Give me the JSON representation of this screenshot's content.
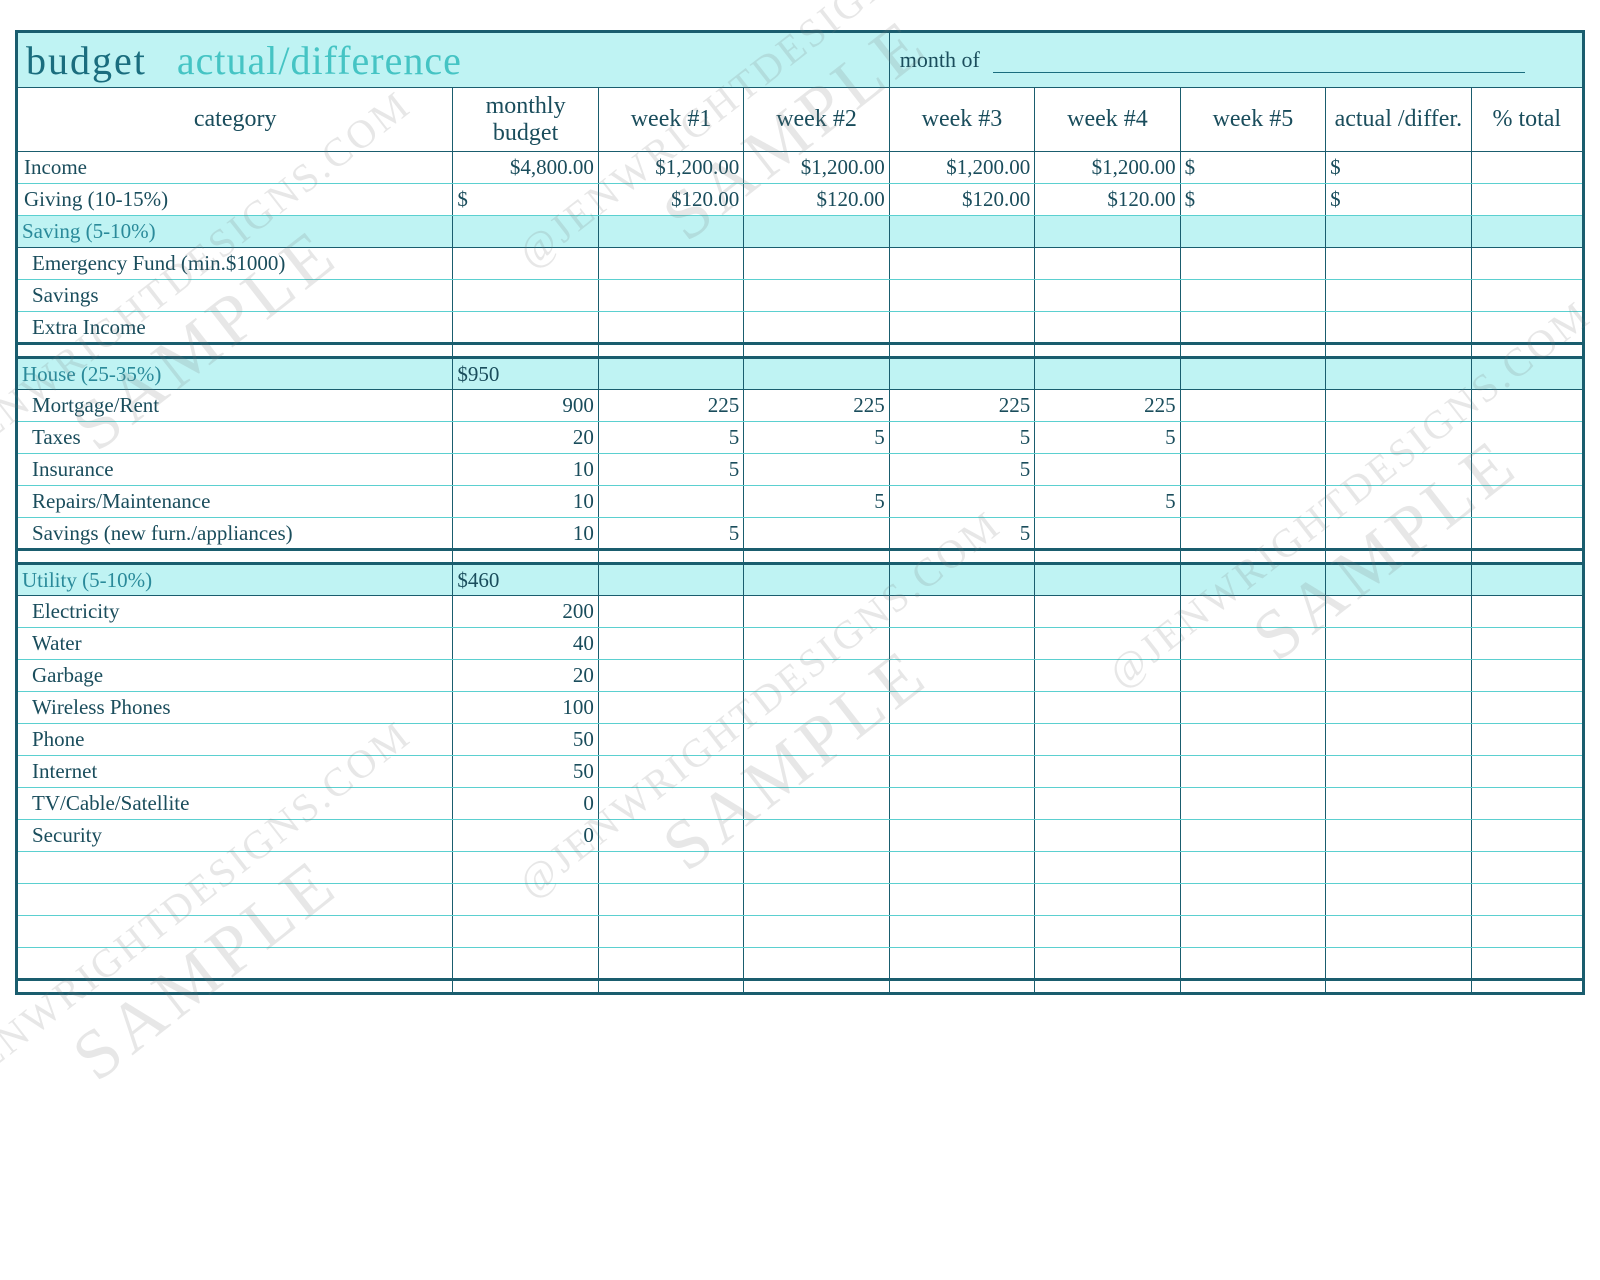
{
  "colors": {
    "border": "#1a5d6e",
    "header_bg": "#bff3f3",
    "inner_line": "#5bd0d0",
    "text": "#1a4d5c",
    "title_dark": "#1a6d7e",
    "title_light": "#45c4c4",
    "section_text": "#2a8a9a",
    "watermark": "rgba(120,120,120,0.18)"
  },
  "title": {
    "word1": "budget",
    "word2": "actual/difference",
    "month_label": "month of"
  },
  "headers": {
    "category": "category",
    "budget": "monthly budget",
    "week1": "week #1",
    "week2": "week #2",
    "week3": "week #3",
    "week4": "week #4",
    "week5": "week #5",
    "actual": "actual /differ.",
    "pct": "% total"
  },
  "top_rows": [
    {
      "label": "Income",
      "budget": "$4,800.00",
      "w1": "$1,200.00",
      "w2": "$1,200.00",
      "w3": "$1,200.00",
      "w4": "$1,200.00",
      "w5": "$",
      "ad": "$",
      "pct": ""
    },
    {
      "label": "Giving (10-15%)",
      "budget": "$",
      "w1": "$120.00",
      "w2": "$120.00",
      "w3": "$120.00",
      "w4": "$120.00",
      "w5": "$",
      "ad": "$",
      "pct": ""
    }
  ],
  "sections": [
    {
      "title": "Saving (5-10%)",
      "budget": "",
      "items": [
        {
          "label": "Emergency Fund (min.$1000)",
          "budget": "",
          "w1": "",
          "w2": "",
          "w3": "",
          "w4": "",
          "w5": "",
          "ad": "",
          "pct": ""
        },
        {
          "label": "Savings",
          "budget": "",
          "w1": "",
          "w2": "",
          "w3": "",
          "w4": "",
          "w5": "",
          "ad": "",
          "pct": ""
        },
        {
          "label": "Extra Income",
          "budget": "",
          "w1": "",
          "w2": "",
          "w3": "",
          "w4": "",
          "w5": "",
          "ad": "",
          "pct": ""
        }
      ]
    },
    {
      "title": "House (25-35%)",
      "budget": "$950",
      "items": [
        {
          "label": "Mortgage/Rent",
          "budget": "900",
          "w1": "225",
          "w2": "225",
          "w3": "225",
          "w4": "225",
          "w5": "",
          "ad": "",
          "pct": ""
        },
        {
          "label": "Taxes",
          "budget": "20",
          "w1": "5",
          "w2": "5",
          "w3": "5",
          "w4": "5",
          "w5": "",
          "ad": "",
          "pct": ""
        },
        {
          "label": "Insurance",
          "budget": "10",
          "w1": "5",
          "w2": "",
          "w3": "5",
          "w4": "",
          "w5": "",
          "ad": "",
          "pct": ""
        },
        {
          "label": "Repairs/Maintenance",
          "budget": "10",
          "w1": "",
          "w2": "5",
          "w3": "",
          "w4": "5",
          "w5": "",
          "ad": "",
          "pct": ""
        },
        {
          "label": "Savings (new furn./appliances)",
          "budget": "10",
          "w1": "5",
          "w2": "",
          "w3": "5",
          "w4": "",
          "w5": "",
          "ad": "",
          "pct": ""
        }
      ]
    },
    {
      "title": "Utility (5-10%)",
      "budget": "$460",
      "items": [
        {
          "label": "Electricity",
          "budget": "200",
          "w1": "",
          "w2": "",
          "w3": "",
          "w4": "",
          "w5": "",
          "ad": "",
          "pct": ""
        },
        {
          "label": "Water",
          "budget": "40",
          "w1": "",
          "w2": "",
          "w3": "",
          "w4": "",
          "w5": "",
          "ad": "",
          "pct": ""
        },
        {
          "label": "Garbage",
          "budget": "20",
          "w1": "",
          "w2": "",
          "w3": "",
          "w4": "",
          "w5": "",
          "ad": "",
          "pct": ""
        },
        {
          "label": "Wireless Phones",
          "budget": "100",
          "w1": "",
          "w2": "",
          "w3": "",
          "w4": "",
          "w5": "",
          "ad": "",
          "pct": ""
        },
        {
          "label": "Phone",
          "budget": "50",
          "w1": "",
          "w2": "",
          "w3": "",
          "w4": "",
          "w5": "",
          "ad": "",
          "pct": ""
        },
        {
          "label": "Internet",
          "budget": "50",
          "w1": "",
          "w2": "",
          "w3": "",
          "w4": "",
          "w5": "",
          "ad": "",
          "pct": ""
        },
        {
          "label": "TV/Cable/Satellite",
          "budget": "0",
          "w1": "",
          "w2": "",
          "w3": "",
          "w4": "",
          "w5": "",
          "ad": "",
          "pct": ""
        },
        {
          "label": "Security",
          "budget": "0",
          "w1": "",
          "w2": "",
          "w3": "",
          "w4": "",
          "w5": "",
          "ad": "",
          "pct": ""
        }
      ],
      "trailing_blank_rows": 4
    }
  ],
  "watermark": {
    "text1": "SAMPLE",
    "text2": "@JENWRIGHTDESIGNS.COM"
  }
}
